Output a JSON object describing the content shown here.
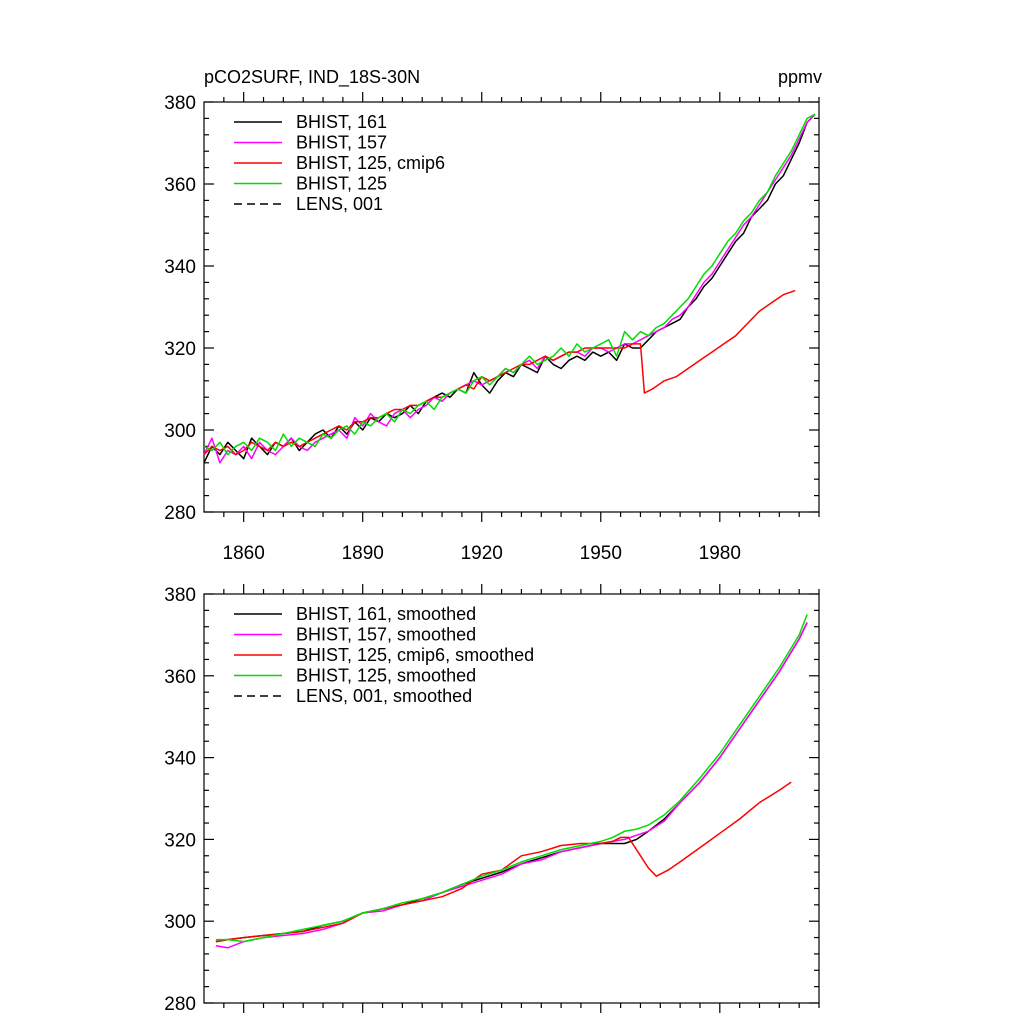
{
  "figure": {
    "title_left": "pCO2SURF, IND_18S-30N",
    "title_right": "ppmv"
  },
  "chart_data": [
    {
      "type": "line",
      "title": "pCO2SURF, IND_18S-30N",
      "units": "ppmv",
      "xlim": [
        1850,
        2005
      ],
      "ylim": [
        280,
        380
      ],
      "xticks": [
        1860,
        1890,
        1920,
        1950,
        1980
      ],
      "yticks": [
        280,
        300,
        320,
        340,
        360,
        380
      ],
      "legend_position": "top-left",
      "grid": false,
      "series": [
        {
          "name": "BHIST, 161",
          "color": "#000000",
          "dash": "solid",
          "x": [
            1850,
            1852,
            1854,
            1856,
            1858,
            1860,
            1862,
            1864,
            1866,
            1868,
            1870,
            1872,
            1874,
            1876,
            1878,
            1880,
            1882,
            1884,
            1886,
            1888,
            1890,
            1892,
            1894,
            1896,
            1898,
            1900,
            1902,
            1904,
            1906,
            1908,
            1910,
            1912,
            1914,
            1916,
            1918,
            1920,
            1922,
            1924,
            1926,
            1928,
            1930,
            1932,
            1934,
            1936,
            1938,
            1940,
            1942,
            1944,
            1946,
            1948,
            1950,
            1952,
            1954,
            1956,
            1958,
            1960,
            1962,
            1964,
            1966,
            1968,
            1970,
            1972,
            1974,
            1976,
            1978,
            1980,
            1982,
            1984,
            1986,
            1988,
            1990,
            1992,
            1994,
            1996,
            1998,
            2000,
            2002,
            2004
          ],
          "y": [
            292,
            296,
            294,
            297,
            295,
            293,
            298,
            296,
            294,
            297,
            296,
            298,
            295,
            297,
            299,
            300,
            298,
            301,
            299,
            302,
            300,
            303,
            302,
            304,
            303,
            304,
            306,
            304,
            307,
            308,
            309,
            308,
            310,
            309,
            314,
            311,
            309,
            312,
            314,
            313,
            316,
            315,
            314,
            318,
            316,
            315,
            317,
            318,
            317,
            319,
            318,
            319,
            317,
            321,
            320,
            320,
            322,
            324,
            325,
            326,
            327,
            330,
            332,
            335,
            337,
            340,
            343,
            346,
            348,
            352,
            354,
            356,
            360,
            362,
            366,
            370,
            375,
            377
          ]
        },
        {
          "name": "BHIST, 157",
          "color": "#ff00ff",
          "dash": "solid",
          "x": [
            1850,
            1852,
            1854,
            1856,
            1858,
            1860,
            1862,
            1864,
            1866,
            1868,
            1870,
            1872,
            1874,
            1876,
            1878,
            1880,
            1882,
            1884,
            1886,
            1888,
            1890,
            1892,
            1894,
            1896,
            1898,
            1900,
            1902,
            1904,
            1906,
            1908,
            1910,
            1912,
            1914,
            1916,
            1918,
            1920,
            1922,
            1924,
            1926,
            1928,
            1930,
            1932,
            1934,
            1936,
            1938,
            1940,
            1942,
            1944,
            1946,
            1948,
            1950,
            1952,
            1954,
            1956,
            1958,
            1960,
            1962,
            1964,
            1966,
            1968,
            1970,
            1972,
            1974,
            1976,
            1978,
            1980,
            1982,
            1984,
            1986,
            1988,
            1990,
            1992,
            1994,
            1996,
            1998,
            2000,
            2002,
            2004
          ],
          "y": [
            294,
            298,
            292,
            295,
            294,
            296,
            293,
            297,
            295,
            294,
            296,
            298,
            296,
            295,
            297,
            298,
            299,
            300,
            298,
            303,
            301,
            304,
            302,
            301,
            304,
            305,
            303,
            305,
            306,
            308,
            307,
            309,
            310,
            311,
            312,
            311,
            312,
            313,
            315,
            314,
            316,
            317,
            315,
            318,
            317,
            318,
            319,
            319,
            318,
            320,
            320,
            319,
            320,
            321,
            321,
            322,
            323,
            324,
            325,
            327,
            328,
            330,
            333,
            336,
            338,
            341,
            344,
            347,
            350,
            352,
            355,
            358,
            361,
            364,
            367,
            371,
            375,
            377
          ]
        },
        {
          "name": "BHIST, 125, cmip6",
          "color": "#ff0000",
          "dash": "solid",
          "x": [
            1850,
            1852,
            1854,
            1856,
            1858,
            1860,
            1862,
            1864,
            1866,
            1868,
            1870,
            1872,
            1874,
            1876,
            1878,
            1880,
            1882,
            1884,
            1886,
            1888,
            1890,
            1892,
            1894,
            1896,
            1898,
            1900,
            1902,
            1904,
            1906,
            1908,
            1910,
            1912,
            1914,
            1916,
            1918,
            1920,
            1922,
            1924,
            1926,
            1928,
            1930,
            1932,
            1934,
            1936,
            1938,
            1940,
            1942,
            1944,
            1946,
            1948,
            1950,
            1952,
            1954,
            1956,
            1958,
            1960,
            1961,
            1963,
            1966,
            1969,
            1972,
            1975,
            1978,
            1981,
            1984,
            1987,
            1990,
            1993,
            1996,
            1999
          ],
          "y": [
            294,
            296,
            295,
            296,
            294,
            295,
            297,
            296,
            295,
            297,
            296,
            297,
            296,
            297,
            298,
            299,
            300,
            301,
            300,
            302,
            302,
            303,
            303,
            304,
            305,
            305,
            306,
            306,
            307,
            308,
            308,
            309,
            310,
            311,
            310,
            313,
            312,
            313,
            314,
            315,
            316,
            316,
            317,
            318,
            317,
            318,
            319,
            319,
            320,
            320,
            320,
            320,
            320,
            320,
            321,
            321,
            309,
            310,
            312,
            313,
            315,
            317,
            319,
            321,
            323,
            326,
            329,
            331,
            333,
            334
          ]
        },
        {
          "name": "BHIST, 125",
          "color": "#00dd00",
          "dash": "solid",
          "x": [
            1850,
            1852,
            1854,
            1856,
            1858,
            1860,
            1862,
            1864,
            1866,
            1868,
            1870,
            1872,
            1874,
            1876,
            1878,
            1880,
            1882,
            1884,
            1886,
            1888,
            1890,
            1892,
            1894,
            1896,
            1898,
            1900,
            1902,
            1904,
            1906,
            1908,
            1910,
            1912,
            1914,
            1916,
            1918,
            1920,
            1922,
            1924,
            1926,
            1928,
            1930,
            1932,
            1934,
            1936,
            1938,
            1940,
            1942,
            1944,
            1946,
            1948,
            1950,
            1952,
            1954,
            1956,
            1958,
            1960,
            1962,
            1964,
            1966,
            1968,
            1970,
            1972,
            1974,
            1976,
            1978,
            1980,
            1982,
            1984,
            1986,
            1988,
            1990,
            1992,
            1994,
            1996,
            1998,
            2000,
            2002,
            2004
          ],
          "y": [
            296,
            295,
            297,
            294,
            296,
            297,
            295,
            298,
            297,
            295,
            299,
            296,
            298,
            297,
            296,
            299,
            298,
            300,
            301,
            299,
            302,
            301,
            303,
            304,
            302,
            305,
            304,
            306,
            307,
            305,
            308,
            309,
            310,
            309,
            312,
            313,
            311,
            313,
            315,
            314,
            316,
            318,
            316,
            317,
            318,
            320,
            318,
            321,
            319,
            320,
            321,
            322,
            318,
            324,
            322,
            324,
            323,
            325,
            326,
            328,
            330,
            332,
            335,
            338,
            340,
            343,
            346,
            348,
            351,
            353,
            356,
            358,
            362,
            365,
            368,
            372,
            376,
            377
          ]
        },
        {
          "name": "LENS, 001",
          "color": "#000000",
          "dash": "dashed",
          "x": [],
          "y": []
        }
      ]
    },
    {
      "type": "line",
      "xlim": [
        1850,
        2005
      ],
      "ylim": [
        280,
        380
      ],
      "xticks": [
        1860,
        1890,
        1920,
        1950,
        1980
      ],
      "yticks": [
        280,
        300,
        320,
        340,
        360,
        380
      ],
      "legend_position": "top-left",
      "grid": false,
      "series": [
        {
          "name": "BHIST, 161, smoothed",
          "color": "#000000",
          "dash": "solid",
          "x": [
            1853,
            1856,
            1860,
            1865,
            1870,
            1875,
            1880,
            1885,
            1890,
            1895,
            1900,
            1905,
            1910,
            1915,
            1920,
            1925,
            1930,
            1935,
            1940,
            1945,
            1950,
            1953,
            1956,
            1959,
            1962,
            1966,
            1970,
            1975,
            1980,
            1985,
            1990,
            1995,
            2000,
            2002
          ],
          "y": [
            295,
            295.5,
            296,
            296.5,
            297,
            297.5,
            299,
            300,
            302,
            303,
            304,
            305.5,
            307,
            309,
            310.5,
            312,
            314,
            315.5,
            317,
            318,
            319,
            319,
            319,
            320,
            322,
            325,
            329,
            334,
            340,
            347,
            354,
            361,
            369,
            373
          ]
        },
        {
          "name": "BHIST, 157, smoothed",
          "color": "#ff00ff",
          "dash": "solid",
          "x": [
            1853,
            1856,
            1860,
            1865,
            1870,
            1875,
            1880,
            1885,
            1890,
            1895,
            1900,
            1905,
            1910,
            1915,
            1920,
            1925,
            1930,
            1935,
            1940,
            1945,
            1950,
            1953,
            1956,
            1959,
            1962,
            1966,
            1970,
            1975,
            1980,
            1985,
            1990,
            1995,
            2000,
            2002
          ],
          "y": [
            294,
            293.5,
            295,
            296,
            296.5,
            297,
            298,
            299.5,
            302,
            302.5,
            304,
            305,
            307,
            308.5,
            310,
            311.5,
            314,
            315,
            317,
            318,
            319,
            319.5,
            320,
            321,
            322,
            324.5,
            329,
            334,
            340,
            347,
            354,
            361,
            369,
            373
          ]
        },
        {
          "name": "BHIST, 125, cmip6, smoothed",
          "color": "#ff0000",
          "dash": "solid",
          "x": [
            1853,
            1856,
            1860,
            1865,
            1870,
            1875,
            1880,
            1885,
            1890,
            1895,
            1900,
            1905,
            1910,
            1915,
            1920,
            1925,
            1930,
            1935,
            1940,
            1945,
            1950,
            1953,
            1955,
            1957,
            1960,
            1962,
            1964,
            1967,
            1970,
            1975,
            1980,
            1985,
            1990,
            1995,
            1998
          ],
          "y": [
            295,
            295.5,
            296,
            296.5,
            297,
            297.5,
            298.5,
            299.5,
            302,
            303,
            304,
            305,
            306,
            308,
            311.5,
            312.5,
            316,
            317,
            318.5,
            319,
            319,
            319.5,
            320.5,
            320.5,
            316,
            313,
            311,
            312.5,
            314.5,
            318,
            321.5,
            325,
            329,
            332,
            334
          ]
        },
        {
          "name": "BHIST, 125, smoothed",
          "color": "#00dd00",
          "dash": "solid",
          "x": [
            1853,
            1856,
            1860,
            1865,
            1870,
            1875,
            1880,
            1885,
            1890,
            1895,
            1900,
            1905,
            1910,
            1915,
            1920,
            1925,
            1930,
            1935,
            1940,
            1945,
            1950,
            1953,
            1956,
            1959,
            1962,
            1966,
            1970,
            1975,
            1980,
            1985,
            1990,
            1995,
            2000,
            2002
          ],
          "y": [
            295.5,
            295.5,
            295,
            296,
            297,
            298,
            299,
            300,
            302,
            303,
            304.5,
            305.5,
            307,
            309,
            311,
            312.5,
            314.5,
            316,
            317.5,
            318.5,
            319.5,
            320.5,
            322,
            322.5,
            323.5,
            326,
            329.5,
            335,
            341,
            348,
            355,
            362,
            370,
            375
          ]
        },
        {
          "name": "LENS, 001, smoothed",
          "color": "#000000",
          "dash": "dashed",
          "x": [],
          "y": []
        }
      ]
    }
  ]
}
